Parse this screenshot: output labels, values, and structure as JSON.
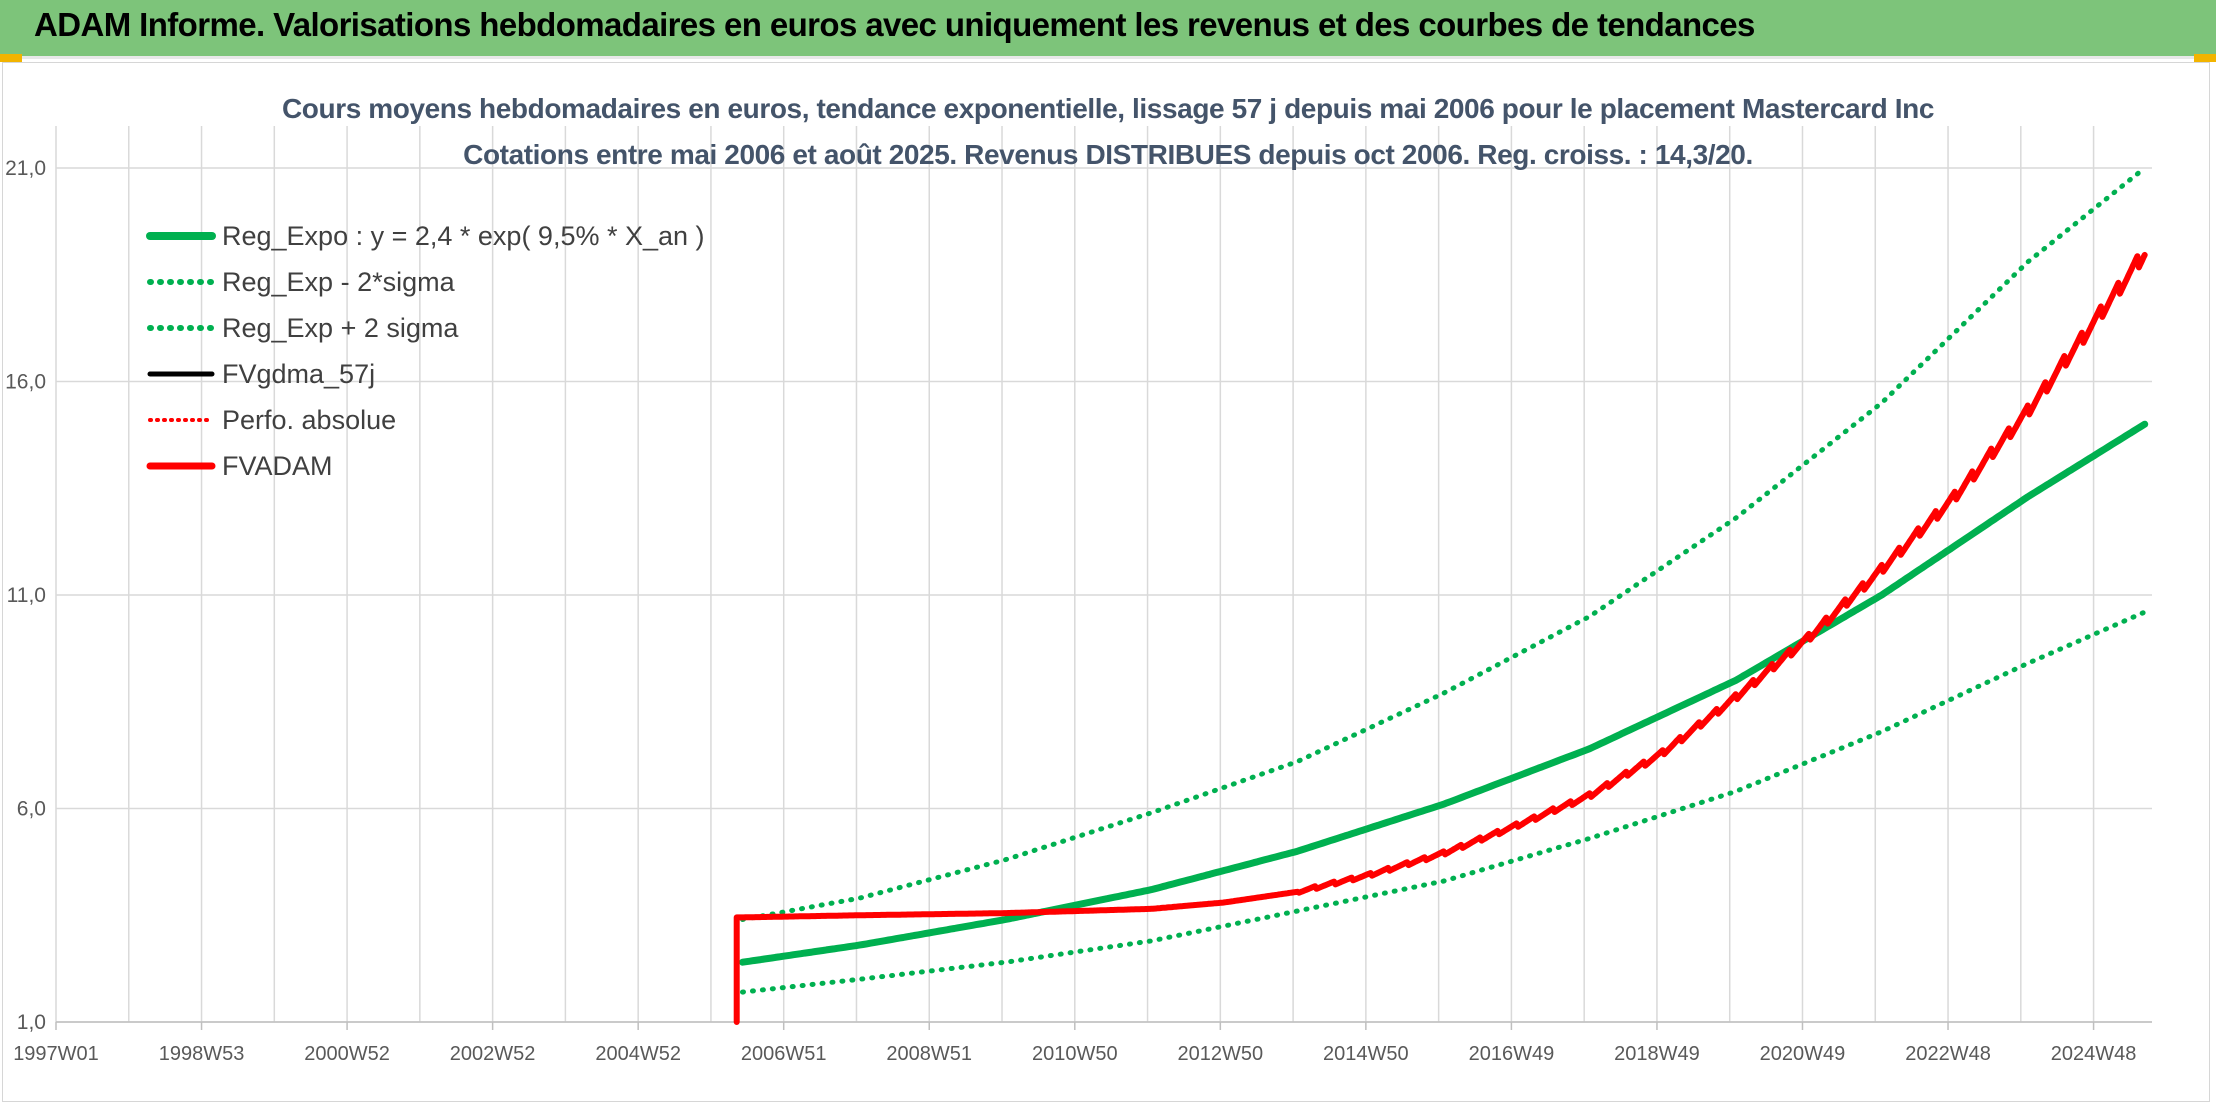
{
  "header": {
    "title": "ADAM Informe. Valorisations hebdomadaires en euros avec uniquement les revenus et des courbes de tendances"
  },
  "colors": {
    "header_bg": "#7dc47a",
    "green": "#00b050",
    "red": "#ff0000",
    "black": "#000000",
    "grid": "#d9d9d9",
    "title_text": "#44546a"
  },
  "chart_data": {
    "type": "line",
    "title": "Cours moyens hebdomadaires en euros, tendance exponentielle, lissage 57 j depuis mai 2006 pour le placement Mastercard Inc",
    "subtitle": "Cotations entre mai 2006 et août 2025. Revenus DISTRIBUES depuis oct 2006. Reg. croiss. : 14,3/20.",
    "xlabel": "",
    "ylabel": "",
    "x_ticks": [
      "1997W01",
      "1998W53",
      "2000W52",
      "2002W52",
      "2004W52",
      "2006W51",
      "2008W51",
      "2010W50",
      "2012W50",
      "2014W50",
      "2016W49",
      "2018W49",
      "2020W49",
      "2022W48",
      "2024W48"
    ],
    "x_range": [
      1997.0,
      2025.7
    ],
    "y_ticks": [
      "1,0",
      "6,0",
      "11,0",
      "16,0",
      "21,0"
    ],
    "ylim": [
      1,
      21
    ],
    "grid": true,
    "legend_position": "top-left",
    "series": [
      {
        "name": "Reg_Expo : y = 2,4 * exp( 9,5% *  X_an )",
        "style": "solid-green",
        "x": [
          2006.4,
          2008.0,
          2010.0,
          2012.0,
          2014.0,
          2016.0,
          2018.0,
          2020.0,
          2022.0,
          2024.0,
          2025.6
        ],
        "y": [
          2.4,
          2.8,
          3.4,
          4.1,
          5.0,
          6.1,
          7.4,
          9.0,
          11.0,
          13.3,
          15.0
        ]
      },
      {
        "name": "Reg_Exp - 2*sigma",
        "style": "dotted-green",
        "x": [
          2006.4,
          2008.0,
          2010.0,
          2012.0,
          2014.0,
          2016.0,
          2018.0,
          2020.0,
          2022.0,
          2024.0,
          2025.6
        ],
        "y": [
          1.7,
          2.0,
          2.4,
          2.9,
          3.6,
          4.3,
          5.3,
          6.4,
          7.8,
          9.4,
          10.6
        ]
      },
      {
        "name": "Reg_Exp + 2 sigma",
        "style": "dotted-green",
        "x": [
          2006.4,
          2008.0,
          2010.0,
          2012.0,
          2014.0,
          2016.0,
          2018.0,
          2020.0,
          2022.0,
          2024.0,
          2025.6
        ],
        "y": [
          3.4,
          3.9,
          4.8,
          5.9,
          7.1,
          8.7,
          10.5,
          12.8,
          15.5,
          18.8,
          21.0
        ]
      },
      {
        "name": "FVgdma_57j",
        "style": "solid-black",
        "x": [
          2006.4,
          2008.0,
          2010.0,
          2012.0,
          2013.0,
          2014.0,
          2015.0,
          2016.0,
          2017.0,
          2018.0,
          2019.0,
          2020.0,
          2021.0,
          2022.0,
          2023.0,
          2024.0,
          2025.0,
          2025.6
        ],
        "y": [
          3.45,
          3.5,
          3.55,
          3.65,
          3.8,
          4.05,
          4.45,
          4.95,
          5.6,
          6.3,
          7.3,
          8.6,
          10.0,
          11.6,
          13.3,
          15.3,
          17.6,
          19.0
        ]
      },
      {
        "name": "Perfo. absolue",
        "style": "dotted-red",
        "x": [
          2006.4,
          2008.0,
          2010.0,
          2012.0,
          2013.0,
          2014.0,
          2015.0,
          2016.0,
          2017.0,
          2018.0,
          2019.0,
          2020.0,
          2021.0,
          2022.0,
          2023.0,
          2024.0,
          2025.0,
          2025.6
        ],
        "y": [
          3.45,
          3.5,
          3.55,
          3.65,
          3.8,
          4.05,
          4.45,
          4.95,
          5.6,
          6.3,
          7.3,
          8.6,
          10.0,
          11.6,
          13.3,
          15.3,
          17.6,
          19.0
        ]
      },
      {
        "name": "FVADAM",
        "style": "solid-red",
        "x": [
          2006.32,
          2006.4,
          2008.0,
          2010.0,
          2012.0,
          2013.0,
          2014.0,
          2015.0,
          2016.0,
          2017.0,
          2018.0,
          2019.0,
          2020.0,
          2021.0,
          2022.0,
          2023.0,
          2024.0,
          2025.0,
          2025.6
        ],
        "y": [
          1.0,
          3.45,
          3.5,
          3.55,
          3.65,
          3.8,
          4.05,
          4.45,
          4.95,
          5.6,
          6.3,
          7.3,
          8.6,
          10.0,
          11.6,
          13.3,
          15.3,
          17.6,
          19.0
        ]
      }
    ]
  }
}
